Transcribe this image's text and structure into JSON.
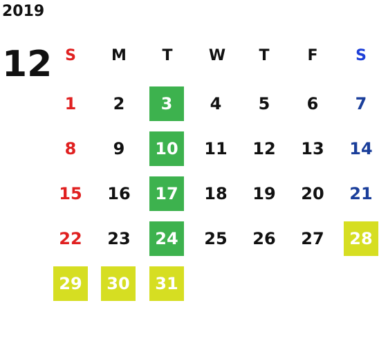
{
  "year": "2019",
  "month": "12",
  "weekdays": [
    "S",
    "M",
    "T",
    "W",
    "T",
    "F",
    "S"
  ],
  "colors": {
    "sunday": "#e02020",
    "saturday": "#1a3e9a",
    "saturday_header": "#1d3fd8",
    "tuesday_highlight": "#3db24e",
    "holiday_highlight": "#d6de22"
  },
  "days": {
    "d1": "1",
    "d2": "2",
    "d3": "3",
    "d4": "4",
    "d5": "5",
    "d6": "6",
    "d7": "7",
    "d8": "8",
    "d9": "9",
    "d10": "10",
    "d11": "11",
    "d12": "12",
    "d13": "13",
    "d14": "14",
    "d15": "15",
    "d16": "16",
    "d17": "17",
    "d18": "18",
    "d19": "19",
    "d20": "20",
    "d21": "21",
    "d22": "22",
    "d23": "23",
    "d24": "24",
    "d25": "25",
    "d26": "26",
    "d27": "27",
    "d28": "28",
    "d29": "29",
    "d30": "30",
    "d31": "31"
  }
}
